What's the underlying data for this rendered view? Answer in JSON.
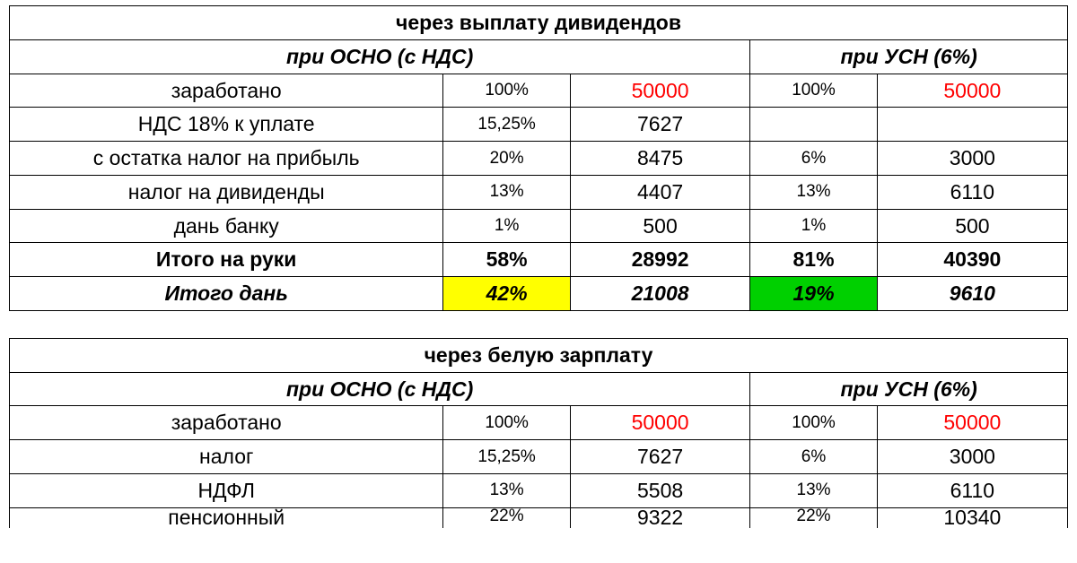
{
  "colors": {
    "border": "#000000",
    "text": "#000000",
    "highlight_red": "#ff0000",
    "highlight_yellow": "#ffff00",
    "highlight_green": "#00d000",
    "background": "#ffffff"
  },
  "table1": {
    "title": "через выплату дивидендов",
    "sub_osno": "при ОСНО (с НДС)",
    "sub_usn": "при УСН (6%)",
    "rows": [
      {
        "label": "заработано",
        "p1": "100%",
        "v1": "50000",
        "p2": "100%",
        "v2": "50000",
        "red": true
      },
      {
        "label": "НДС 18% к уплате",
        "p1": "15,25%",
        "v1": "7627",
        "p2": "",
        "v2": ""
      },
      {
        "label": "с остатка налог на прибыль",
        "p1": "20%",
        "v1": "8475",
        "p2": "6%",
        "v2": "3000"
      },
      {
        "label": "налог на дивиденды",
        "p1": "13%",
        "v1": "4407",
        "p2": "13%",
        "v2": "6110"
      },
      {
        "label": "дань банку",
        "p1": "1%",
        "v1": "500",
        "p2": "1%",
        "v2": "500"
      }
    ],
    "totals_net": {
      "label": "Итого на руки",
      "p1": "58%",
      "v1": "28992",
      "p2": "81%",
      "v2": "40390"
    },
    "totals_tax": {
      "label": "Итого дань",
      "p1": "42%",
      "v1": "21008",
      "p2": "19%",
      "v2": "9610"
    }
  },
  "table2": {
    "title": "через белую зарплату",
    "sub_osno": "при ОСНО (с НДС)",
    "sub_usn": "при УСН (6%)",
    "rows": [
      {
        "label": "заработано",
        "p1": "100%",
        "v1": "50000",
        "p2": "100%",
        "v2": "50000",
        "red": true
      },
      {
        "label": "налог",
        "p1": "15,25%",
        "v1": "7627",
        "p2": "6%",
        "v2": "3000"
      },
      {
        "label": "НДФЛ",
        "p1": "13%",
        "v1": "5508",
        "p2": "13%",
        "v2": "6110"
      }
    ],
    "cut_row": {
      "label": "пенсионный",
      "p1": "22%",
      "v1": "9322",
      "p2": "22%",
      "v2": "10340"
    }
  }
}
